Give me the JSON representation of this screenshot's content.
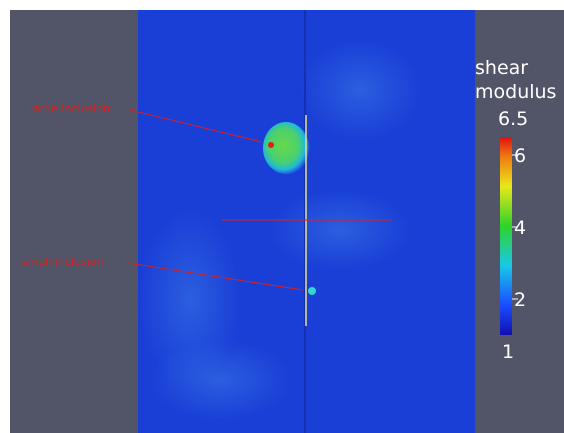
{
  "annotations": [
    "large inclusion",
    "small inclusion"
  ],
  "colorbar": {
    "title_lines": [
      "shear",
      "modulus"
    ],
    "range": [
      1,
      6.5
    ],
    "ticks": [
      2,
      4,
      6
    ]
  }
}
